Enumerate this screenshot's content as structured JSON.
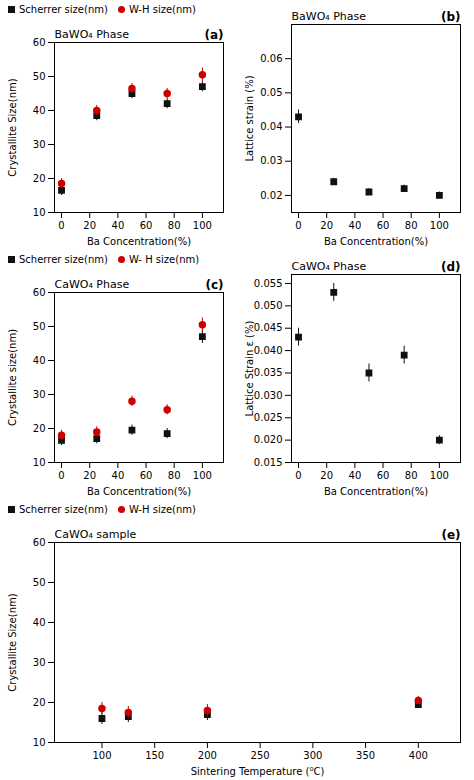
{
  "chart_data": [
    {
      "type": "scatter",
      "title": "BaWO₄ Phase",
      "annotations": [
        "(a)"
      ],
      "x_label": "Ba Concentration(%)",
      "y_label": "Crystallite Size(nm)",
      "x": [
        0,
        25,
        50,
        75,
        100
      ],
      "series": [
        {
          "name": "Scherrer size(nm)",
          "color": "#111111",
          "marker": "square",
          "values": [
            16.5,
            38.5,
            45.0,
            42.0,
            47.0
          ],
          "errors": [
            1.5,
            1.5,
            1.5,
            1.5,
            1.5
          ]
        },
        {
          "name": "W-H size(nm)",
          "color": "#cc0000",
          "marker": "circle",
          "values": [
            18.5,
            40.0,
            46.5,
            45.0,
            50.5
          ],
          "errors": [
            1.5,
            1.5,
            1.5,
            1.5,
            2.0
          ]
        }
      ],
      "xlim": [
        -5,
        115
      ],
      "xticks": [
        0,
        20,
        40,
        60,
        80,
        100
      ],
      "ylim": [
        10,
        60
      ],
      "yticks": [
        10,
        20,
        30,
        40,
        50,
        60
      ],
      "grid": false,
      "legend": "upper left"
    },
    {
      "type": "scatter",
      "title": "BaWO₄ Phase",
      "annotations": [
        "(b)"
      ],
      "x_label": "Ba Concentration(%)",
      "y_label": "Lattice strain (%)",
      "x": [
        0,
        25,
        50,
        75,
        100
      ],
      "series": [
        {
          "color": "#111111",
          "marker": "square",
          "values": [
            0.043,
            0.024,
            0.021,
            0.022,
            0.02
          ],
          "errors": [
            0.002,
            0.001,
            0.001,
            0.001,
            0.001
          ]
        }
      ],
      "xlim": [
        -5,
        115
      ],
      "xticks": [
        0,
        20,
        40,
        60,
        80,
        100
      ],
      "ylim": [
        0.015,
        0.07
      ],
      "yticks": [
        0.02,
        0.03,
        0.04,
        0.05,
        0.06
      ],
      "grid": false
    },
    {
      "type": "scatter",
      "title": "CaWO₄ Phase",
      "annotations": [
        "(c)"
      ],
      "x_label": "Ba Concentration(%)",
      "y_label": "Crystallite size(nm)",
      "x": [
        0,
        25,
        50,
        75,
        100
      ],
      "series": [
        {
          "name": "Scherrer size(nm)",
          "color": "#111111",
          "marker": "square",
          "values": [
            16.5,
            17.0,
            19.5,
            18.5,
            47.0
          ],
          "errors": [
            1.5,
            1.5,
            1.5,
            1.5,
            2.0
          ]
        },
        {
          "name": "W- H size(nm)",
          "color": "#cc0000",
          "marker": "circle",
          "values": [
            18.0,
            19.0,
            28.0,
            25.5,
            50.5
          ],
          "errors": [
            1.5,
            1.5,
            1.5,
            1.5,
            2.0
          ]
        }
      ],
      "xlim": [
        -5,
        115
      ],
      "xticks": [
        0,
        20,
        40,
        60,
        80,
        100
      ],
      "ylim": [
        10,
        60
      ],
      "yticks": [
        10,
        20,
        30,
        40,
        50,
        60
      ],
      "grid": false,
      "legend": "upper left"
    },
    {
      "type": "scatter",
      "title": "CaWO₄ Phase",
      "annotations": [
        "(d)"
      ],
      "x_label": "Ba Concentration(%)",
      "y_label": "Lattice Strain ε (%)",
      "x": [
        0,
        25,
        50,
        75,
        100
      ],
      "series": [
        {
          "color": "#111111",
          "marker": "square",
          "values": [
            0.043,
            0.053,
            0.035,
            0.039,
            0.02
          ],
          "errors": [
            0.002,
            0.002,
            0.002,
            0.002,
            0.001
          ]
        }
      ],
      "xlim": [
        -5,
        115
      ],
      "xticks": [
        0,
        20,
        40,
        60,
        80,
        100
      ],
      "ylim": [
        0.015,
        0.057
      ],
      "yticks": [
        0.015,
        {
          "value": 0.02,
          "label": "0.020"
        },
        0.025,
        {
          "value": 0.03,
          "label": "0.030"
        },
        0.035,
        {
          "value": 0.04,
          "label": "0.040"
        },
        0.045,
        {
          "value": 0.05,
          "label": "0.050"
        },
        0.055
      ],
      "grid": false
    },
    {
      "type": "scatter",
      "title": "CaWO₄ sample",
      "annotations": [
        "(e)"
      ],
      "x_label": "Sintering Temperature (⁰C)",
      "y_label": "Crystallite Size(nm)",
      "x": [
        100,
        125,
        200,
        400
      ],
      "series": [
        {
          "name": "Scherrer size(nm)",
          "color": "#111111",
          "marker": "square",
          "values": [
            16.0,
            16.5,
            17.0,
            19.5
          ],
          "errors": [
            1.5,
            1.5,
            1.5,
            1.0
          ]
        },
        {
          "name": "W-H size(nm)",
          "color": "#cc0000",
          "marker": "circle",
          "values": [
            18.5,
            17.5,
            18.0,
            20.5
          ],
          "errors": [
            1.5,
            1.5,
            1.5,
            1.0
          ]
        }
      ],
      "xlim": [
        55,
        440
      ],
      "xticks": [
        100,
        150,
        200,
        250,
        300,
        350,
        400
      ],
      "ylim": [
        10,
        60
      ],
      "yticks": [
        10,
        20,
        30,
        40,
        50,
        60
      ],
      "grid": false,
      "legend": "upper left"
    }
  ]
}
